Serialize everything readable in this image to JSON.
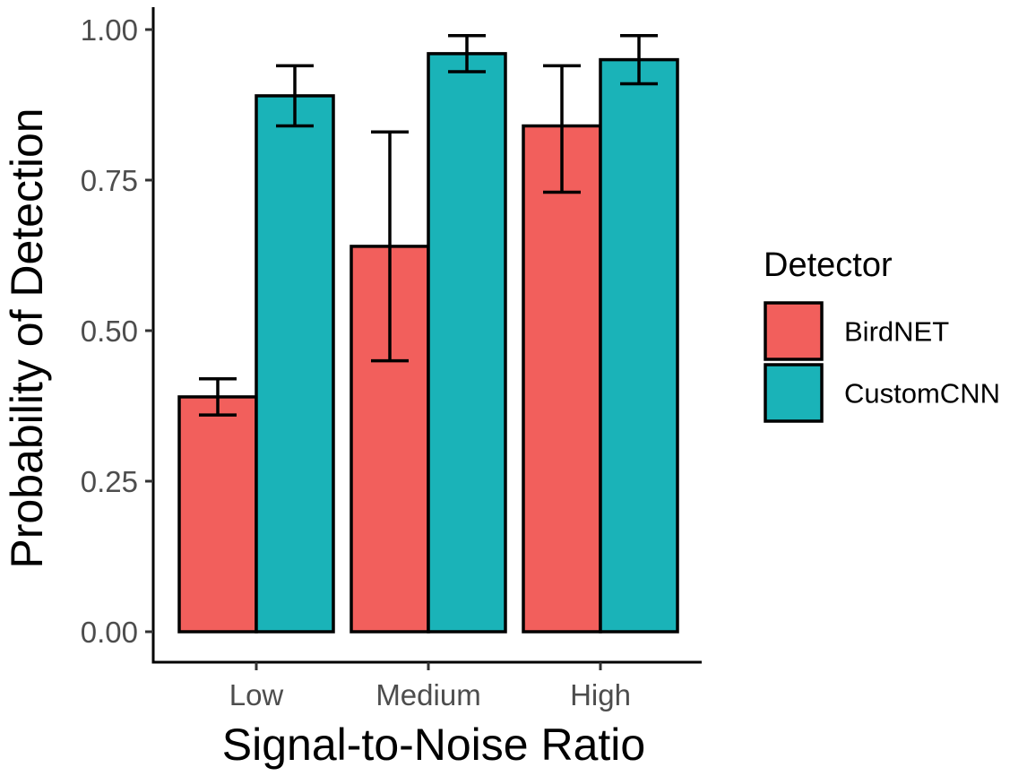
{
  "chart_data": {
    "type": "bar",
    "title": "",
    "xlabel": "Signal-to-Noise Ratio",
    "ylabel": "Probability of Detection",
    "categories": [
      "Low",
      "Medium",
      "High"
    ],
    "ylim": [
      -0.05,
      1.04
    ],
    "yticks": [
      0.0,
      0.25,
      0.5,
      0.75,
      1.0
    ],
    "ytick_labels": [
      "0.00",
      "0.25",
      "0.50",
      "0.75",
      "1.00"
    ],
    "grid": false,
    "legend": {
      "title": "Detector",
      "placement": "right"
    },
    "series": [
      {
        "name": "BirdNET",
        "color": "#F25F5C",
        "values": [
          0.39,
          0.64,
          0.84
        ],
        "error_low": [
          0.36,
          0.45,
          0.73
        ],
        "error_high": [
          0.42,
          0.83,
          0.94
        ]
      },
      {
        "name": "CustomCNN",
        "color": "#1AB3B8",
        "values": [
          0.89,
          0.96,
          0.95
        ],
        "error_low": [
          0.84,
          0.93,
          0.91
        ],
        "error_high": [
          0.94,
          0.99,
          0.99
        ]
      }
    ]
  }
}
